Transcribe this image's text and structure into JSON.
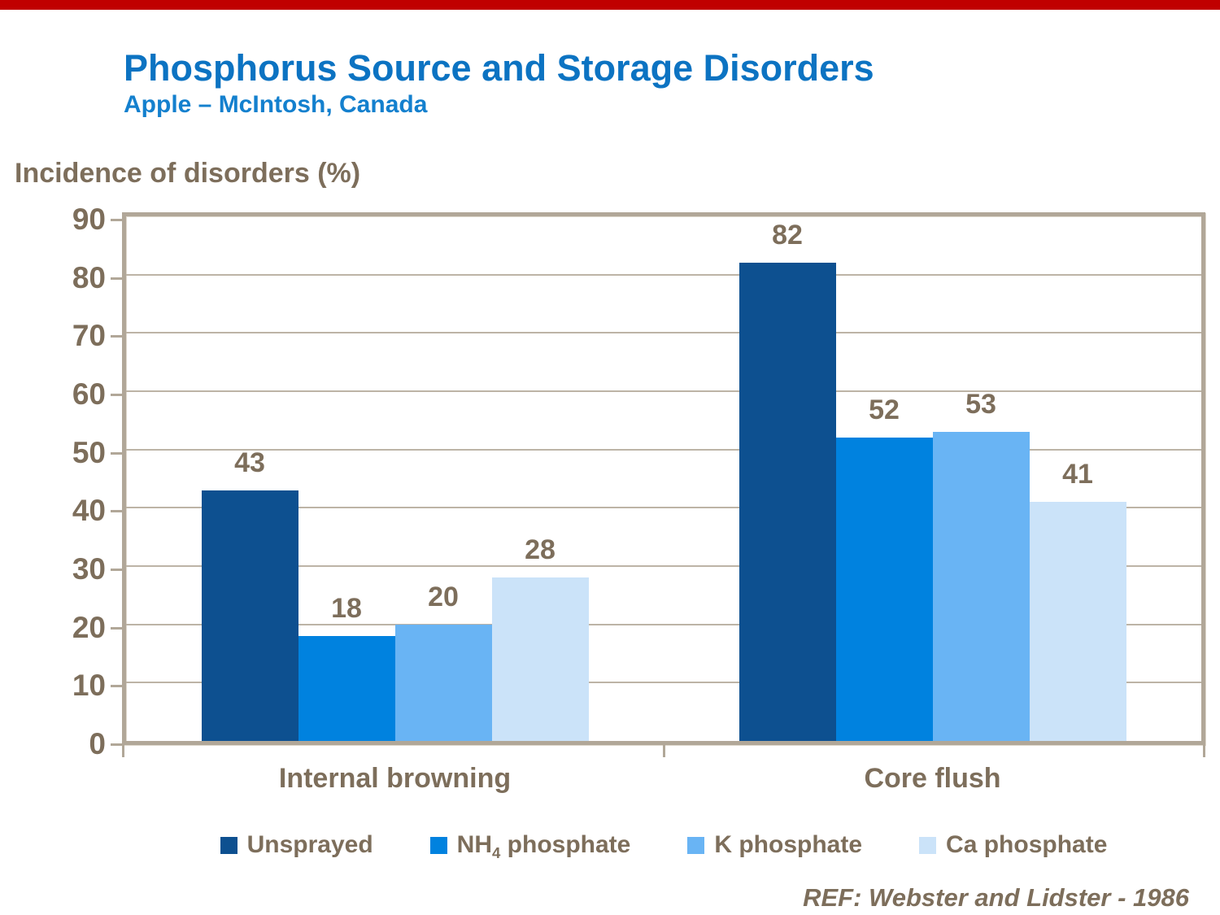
{
  "header": {
    "title": "Phosphorus Source and Storage Disorders",
    "subtitle": "Apple – McIntosh, Canada"
  },
  "colors": {
    "top_bar": "#C00000",
    "title_blue": "#0C73C2",
    "subtitle_blue": "#1480CE",
    "text_brown": "#7D6E5B",
    "axis_frame": "#B1A798",
    "gridline": "#BDB4A6"
  },
  "chart_data": {
    "type": "bar",
    "title": "Phosphorus Source and Storage Disorders",
    "subtitle": "Apple – McIntosh, Canada",
    "axis_title": "Incidence of disorders (%)",
    "categories": [
      "Internal browning",
      "Core flush"
    ],
    "series": [
      {
        "name": "Unsprayed",
        "legend_label": "Unsprayed",
        "color": "#0D5090",
        "values": [
          43,
          82
        ]
      },
      {
        "name": "NH4 phosphate",
        "legend_label": "NH{4} phosphate",
        "color": "#0082DF",
        "values": [
          18,
          52
        ]
      },
      {
        "name": "K phosphate",
        "legend_label": "K phosphate",
        "color": "#69B4F4",
        "values": [
          20,
          53
        ]
      },
      {
        "name": "Ca phosphate",
        "legend_label": "Ca phosphate",
        "color": "#CBE3F9",
        "values": [
          28,
          41
        ]
      }
    ],
    "ylim": [
      0,
      90
    ],
    "ytick_step": 10,
    "grid": true,
    "legend_position": "bottom",
    "footnote": "REF: Webster and Lidster - 1986"
  }
}
